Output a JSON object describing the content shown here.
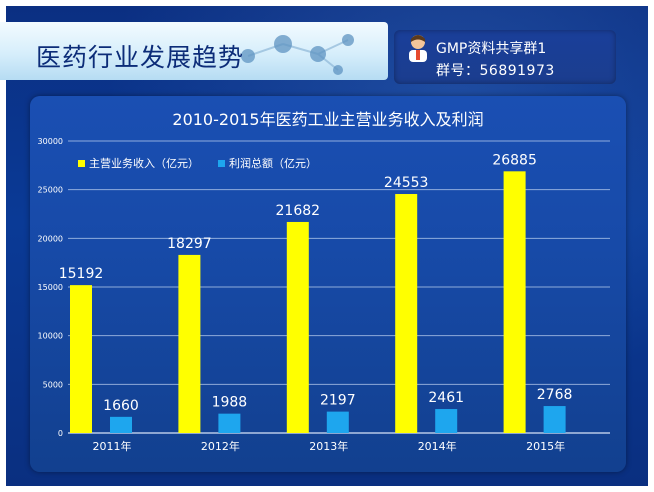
{
  "header": {
    "title": "医药行业发展趋势"
  },
  "group": {
    "name": "GMP资料共享群1",
    "id_text": "群号：56891973"
  },
  "chart_data": {
    "type": "bar",
    "title": "2010-2015年医药工业主营业务收入及利润",
    "categories": [
      "2011年",
      "2012年",
      "2013年",
      "2014年",
      "2015年"
    ],
    "series": [
      {
        "name": "主营业务收入（亿元）",
        "color": "#ffff00",
        "values": [
          15192,
          18297,
          21682,
          24553,
          26885
        ]
      },
      {
        "name": "利润总额（亿元）",
        "color": "#1ea6ee",
        "values": [
          1660,
          1988,
          2197,
          2461,
          2768
        ]
      }
    ],
    "ylim": [
      0,
      30000
    ],
    "yticks": [
      0,
      5000,
      10000,
      15000,
      20000,
      25000,
      30000
    ],
    "grid": true,
    "legend_position": "top-left"
  }
}
